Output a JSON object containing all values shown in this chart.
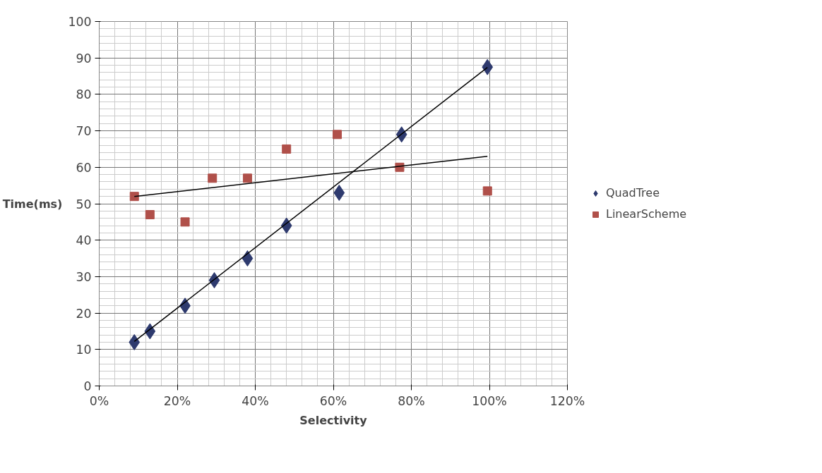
{
  "chart_data": {
    "type": "scatter",
    "xlabel": "Selectivity",
    "ylabel": "Time(ms)",
    "xlim": [
      0,
      120
    ],
    "xticks": [
      {
        "value": 0,
        "label": "0%"
      },
      {
        "value": 20,
        "label": "20%"
      },
      {
        "value": 40,
        "label": "40%"
      },
      {
        "value": 60,
        "label": "60%"
      },
      {
        "value": 80,
        "label": "80%"
      },
      {
        "value": 100,
        "label": "100%"
      },
      {
        "value": 120,
        "label": "120%"
      }
    ],
    "ylim": [
      0,
      100
    ],
    "yticks": [
      0,
      10,
      20,
      30,
      40,
      50,
      60,
      70,
      80,
      90,
      100
    ],
    "grid": true,
    "legend": "right",
    "series": [
      {
        "name": "QuadTree",
        "color": "#2e3a6e",
        "marker": "diamond",
        "x": [
          9,
          13,
          22,
          29.5,
          38,
          48,
          61.5,
          77.5,
          99.5
        ],
        "values": [
          12,
          15,
          22,
          29,
          35,
          44,
          53,
          69,
          87.5
        ]
      },
      {
        "name": "LinearScheme",
        "color": "#b0504a",
        "marker": "square",
        "x": [
          9,
          13,
          22,
          29,
          38,
          48,
          61,
          77,
          99.5
        ],
        "values": [
          52,
          47,
          45,
          57,
          57,
          65,
          69,
          60,
          53.5
        ]
      },
      {
        "type": "line",
        "color": "#000000",
        "x": [
          9,
          99.5
        ],
        "values": [
          12.2,
          87.4
        ]
      },
      {
        "type": "line",
        "color": "#000000",
        "x": [
          9,
          99.5
        ],
        "values": [
          52,
          63
        ]
      }
    ]
  }
}
